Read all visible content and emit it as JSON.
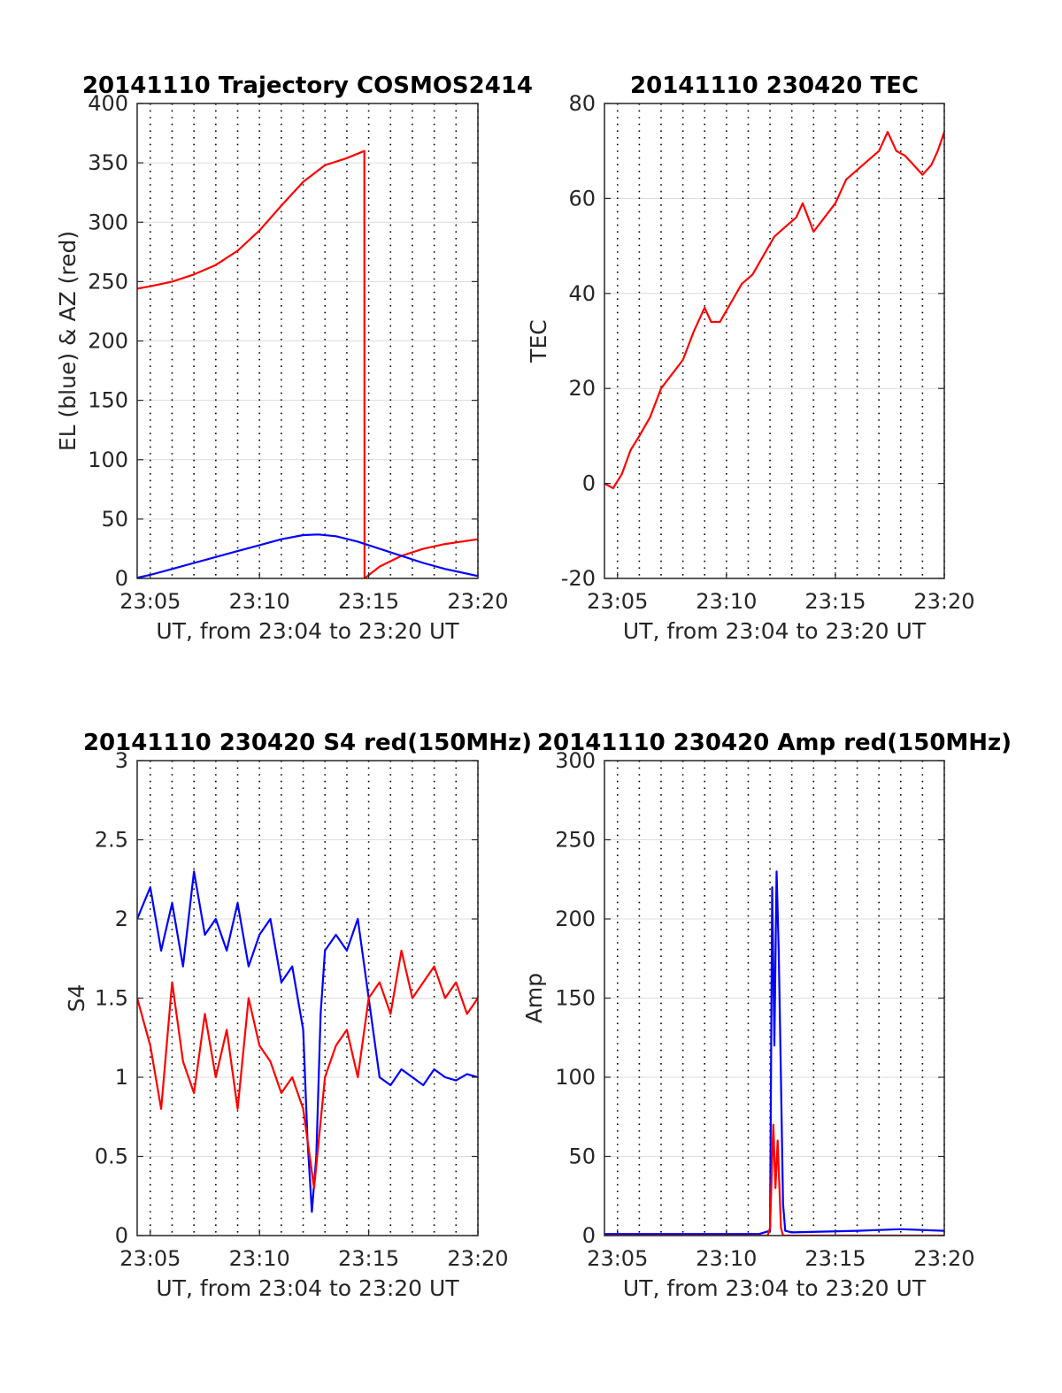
{
  "chart_data": [
    {
      "type": "line",
      "title": "20141110 Trajectory COSMOS2414",
      "xlabel": "UT, from 23:04 to 23:20 UT",
      "ylabel": "EL (blue) & AZ (red)",
      "xlim": [
        4.4,
        20
      ],
      "ylim": [
        0,
        400
      ],
      "x_ticks": [
        5,
        10,
        15,
        20
      ],
      "x_tick_labels": [
        "23:05",
        "23:10",
        "23:15",
        "23:20"
      ],
      "y_ticks": [
        0,
        50,
        100,
        150,
        200,
        250,
        300,
        350,
        400
      ],
      "grid": true,
      "colors": {
        "az": "#ff0000",
        "el": "#0000ff"
      },
      "series": [
        {
          "color": "#ff0000",
          "x": [
            4.4,
            5,
            6,
            7,
            8,
            9,
            10,
            11,
            12,
            13,
            14,
            14.8,
            14.81,
            15.5,
            16.5,
            17.5,
            18.5,
            20
          ],
          "y": [
            244,
            246,
            250,
            256,
            264,
            276,
            293,
            314,
            334,
            348,
            354,
            360,
            0,
            10,
            19,
            25,
            29,
            33
          ]
        },
        {
          "color": "#0000ff",
          "x": [
            4.4,
            5,
            6,
            7,
            8,
            9,
            10,
            11,
            12,
            12.7,
            13.5,
            14.5,
            15.5,
            16.5,
            17.5,
            18.5,
            20
          ],
          "y": [
            0.5,
            3,
            8,
            13,
            18,
            23,
            28,
            33,
            36.5,
            37,
            35.5,
            31,
            25,
            19,
            13,
            8,
            2
          ]
        }
      ]
    },
    {
      "type": "line",
      "title": "20141110 230420 TEC",
      "xlabel": "UT, from 23:04 to 23:20 UT",
      "ylabel": "TEC",
      "xlim": [
        4.4,
        20
      ],
      "ylim": [
        -20,
        80
      ],
      "x_ticks": [
        5,
        10,
        15,
        20
      ],
      "x_tick_labels": [
        "23:05",
        "23:10",
        "23:15",
        "23:20"
      ],
      "y_ticks": [
        -20,
        0,
        20,
        40,
        60,
        80
      ],
      "grid": true,
      "series": [
        {
          "color": "#ff0000",
          "x": [
            4.4,
            4.8,
            5.2,
            5.6,
            6.0,
            6.5,
            7.0,
            7.5,
            8.0,
            8.5,
            9.0,
            9.3,
            9.7,
            10.2,
            10.7,
            11.2,
            11.7,
            12.2,
            12.7,
            13.2,
            13.5,
            14.0,
            14.5,
            15.0,
            15.5,
            16.0,
            16.5,
            17.0,
            17.4,
            17.8,
            18.2,
            18.6,
            19.0,
            19.4,
            19.7,
            20.0
          ],
          "y": [
            0,
            -1,
            2,
            7,
            10,
            14,
            20,
            23,
            26,
            32,
            37,
            34,
            34,
            38,
            42,
            44,
            48,
            52,
            54,
            56,
            59,
            53,
            56,
            59,
            64,
            66,
            68,
            70,
            74,
            70,
            69,
            67,
            65,
            67,
            70,
            74
          ]
        }
      ]
    },
    {
      "type": "line",
      "title": "20141110 230420 S4 red(150MHz)",
      "xlabel": "UT, from 23:04 to 23:20 UT",
      "ylabel": "S4",
      "xlim": [
        4.4,
        20
      ],
      "ylim": [
        0,
        3
      ],
      "x_ticks": [
        5,
        10,
        15,
        20
      ],
      "x_tick_labels": [
        "23:05",
        "23:10",
        "23:15",
        "23:20"
      ],
      "y_ticks": [
        0,
        0.5,
        1,
        1.5,
        2,
        2.5,
        3
      ],
      "grid": true,
      "series": [
        {
          "color": "#0000ff",
          "x": [
            4.4,
            5,
            5.5,
            6,
            6.5,
            7,
            7.5,
            8,
            8.5,
            9,
            9.5,
            10,
            10.5,
            11,
            11.5,
            12,
            12.2,
            12.4,
            12.6,
            12.8,
            13,
            13.5,
            14,
            14.5,
            15,
            15.5,
            16,
            16.5,
            17,
            17.5,
            18,
            18.5,
            19,
            19.5,
            20
          ],
          "y": [
            2.0,
            2.2,
            1.8,
            2.1,
            1.7,
            2.3,
            1.9,
            2.0,
            1.8,
            2.1,
            1.7,
            1.9,
            2.0,
            1.6,
            1.7,
            1.3,
            0.6,
            0.15,
            0.5,
            1.4,
            1.8,
            1.9,
            1.8,
            2.0,
            1.5,
            1.0,
            0.95,
            1.05,
            1.0,
            0.95,
            1.05,
            1.0,
            0.98,
            1.02,
            1.0
          ]
        },
        {
          "color": "#ff0000",
          "x": [
            4.4,
            5,
            5.5,
            6,
            6.5,
            7,
            7.5,
            8,
            8.5,
            9,
            9.5,
            10,
            10.5,
            11,
            11.5,
            12,
            12.5,
            13,
            13.5,
            14,
            14.5,
            15,
            15.5,
            16,
            16.5,
            17,
            17.5,
            18,
            18.5,
            19,
            19.5,
            20
          ],
          "y": [
            1.5,
            1.2,
            0.8,
            1.6,
            1.1,
            0.9,
            1.4,
            1.0,
            1.3,
            0.8,
            1.5,
            1.2,
            1.1,
            0.9,
            1.0,
            0.8,
            0.3,
            1.0,
            1.2,
            1.3,
            1.0,
            1.5,
            1.6,
            1.4,
            1.8,
            1.5,
            1.6,
            1.7,
            1.5,
            1.6,
            1.4,
            1.5
          ]
        }
      ]
    },
    {
      "type": "line",
      "title": "20141110 230420 Amp red(150MHz)",
      "xlabel": "UT, from 23:04 to 23:20 UT",
      "ylabel": "Amp",
      "xlim": [
        4.4,
        20
      ],
      "ylim": [
        0,
        300
      ],
      "x_ticks": [
        5,
        10,
        15,
        20
      ],
      "x_tick_labels": [
        "23:05",
        "23:10",
        "23:15",
        "23:20"
      ],
      "y_ticks": [
        0,
        50,
        100,
        150,
        200,
        250,
        300
      ],
      "grid": true,
      "series": [
        {
          "color": "#0000ff",
          "x": [
            4.4,
            8,
            11.5,
            12.0,
            12.1,
            12.2,
            12.3,
            12.4,
            12.5,
            12.6,
            12.7,
            13,
            16,
            18,
            20
          ],
          "y": [
            1,
            1,
            1,
            3,
            220,
            120,
            230,
            180,
            100,
            20,
            3,
            2,
            3,
            4,
            3
          ]
        },
        {
          "color": "#ff0000",
          "x": [
            4.4,
            11.9,
            12.0,
            12.15,
            12.25,
            12.35,
            12.5,
            12.6,
            20
          ],
          "y": [
            0,
            0,
            5,
            70,
            30,
            60,
            5,
            0,
            0
          ]
        }
      ]
    }
  ]
}
